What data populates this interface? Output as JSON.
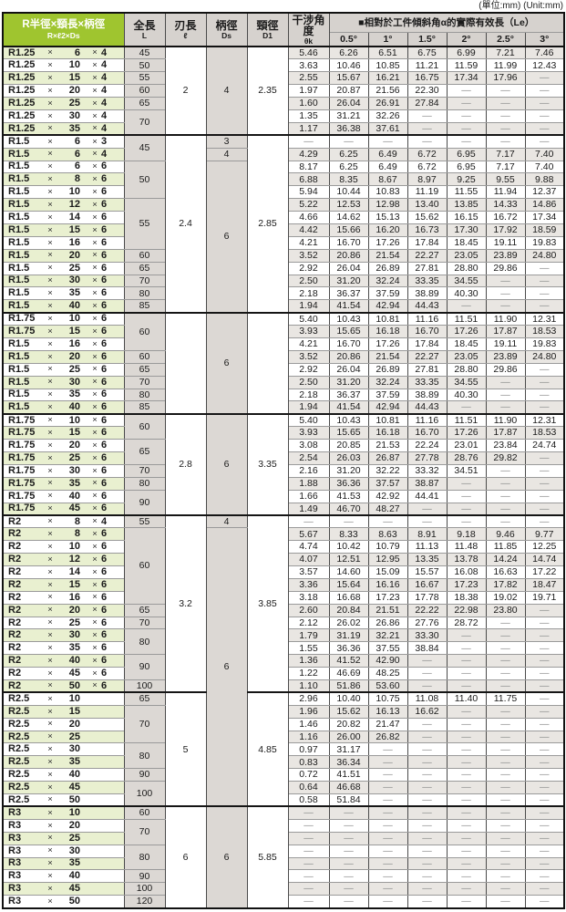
{
  "unit_note": "(單位:mm) (Unit:mm)",
  "colors": {
    "header_accent_green": "#9fc52f",
    "header_gray": "#d6d2ce",
    "row_tint_green": "#e9f0d0",
    "row_tint_gray": "#e9e6e2",
    "fixed_col_gray": "#dcd8d4"
  },
  "header": {
    "col_label_line1": "R半徑×頸長×柄徑",
    "col_label_line2": "R×ℓ2×Ds",
    "col_length_line1": "全長",
    "col_length_line2": "L",
    "col_flute_line1": "刃長",
    "col_flute_line2": "ℓ",
    "col_shank_line1": "柄徑",
    "col_shank_line2": "Ds",
    "col_neck_line1": "頸徑",
    "col_neck_line2": "D1",
    "col_angle_line1": "干涉角度",
    "col_angle_line2": "θk",
    "le_header": "■相對於工件傾斜角α的實際有效長（Le）",
    "angles": [
      "0.5°",
      "1°",
      "1.5°",
      "2°",
      "2.5°",
      "3°"
    ]
  },
  "rows": [
    {
      "r": "R1.25",
      "n": "6",
      "d": "4",
      "L": "45",
      "Ls": 1,
      "fl": "2",
      "fls": 7,
      "ds": "4",
      "dss": 7,
      "d1": "2.35",
      "d1s": 7,
      "tk": "5.46",
      "v": [
        "6.26",
        "6.51",
        "6.75",
        "6.99",
        "7.21",
        "7.46"
      ]
    },
    {
      "r": "R1.25",
      "n": "10",
      "d": "4",
      "L": "50",
      "tk": "3.63",
      "v": [
        "10.46",
        "10.85",
        "11.21",
        "11.59",
        "11.99",
        "12.43"
      ]
    },
    {
      "r": "R1.25",
      "n": "15",
      "d": "4",
      "L": "55",
      "tk": "2.55",
      "v": [
        "15.67",
        "16.21",
        "16.75",
        "17.34",
        "17.96",
        "—"
      ]
    },
    {
      "r": "R1.25",
      "n": "20",
      "d": "4",
      "L": "60",
      "tk": "1.97",
      "v": [
        "20.87",
        "21.56",
        "22.30",
        "—",
        "—",
        "—"
      ]
    },
    {
      "r": "R1.25",
      "n": "25",
      "d": "4",
      "L": "65",
      "tk": "1.60",
      "v": [
        "26.04",
        "26.91",
        "27.84",
        "—",
        "—",
        "—"
      ]
    },
    {
      "r": "R1.25",
      "n": "30",
      "d": "4",
      "L": "70",
      "Ls": 2,
      "tk": "1.35",
      "v": [
        "31.21",
        "32.26",
        "—",
        "—",
        "—",
        "—"
      ]
    },
    {
      "r": "R1.25",
      "n": "35",
      "d": "4",
      "tk": "1.17",
      "v": [
        "36.38",
        "37.61",
        "—",
        "—",
        "—",
        "—"
      ]
    },
    {
      "r": "R1.5",
      "n": "6",
      "d": "3",
      "sec": 1,
      "L": "45",
      "Ls": 2,
      "fl": "2.4",
      "fls": 14,
      "ds": "3",
      "dss": 1,
      "d1": "2.85",
      "d1s": 14,
      "tk": "—",
      "v": [
        "—",
        "—",
        "—",
        "—",
        "—",
        "—"
      ]
    },
    {
      "r": "R1.5",
      "n": "6",
      "d": "4",
      "ds": "4",
      "dss": 1,
      "tk": "4.29",
      "v": [
        "6.25",
        "6.49",
        "6.72",
        "6.95",
        "7.17",
        "7.40"
      ]
    },
    {
      "r": "R1.5",
      "n": "6",
      "d": "6",
      "L": "50",
      "Ls": 3,
      "ds": "6",
      "dss": 12,
      "tk": "8.17",
      "v": [
        "6.25",
        "6.49",
        "6.72",
        "6.95",
        "7.17",
        "7.40"
      ]
    },
    {
      "r": "R1.5",
      "n": "8",
      "d": "6",
      "tk": "6.88",
      "v": [
        "8.35",
        "8.67",
        "8.97",
        "9.25",
        "9.55",
        "9.88"
      ]
    },
    {
      "r": "R1.5",
      "n": "10",
      "d": "6",
      "tk": "5.94",
      "v": [
        "10.44",
        "10.83",
        "11.19",
        "11.55",
        "11.94",
        "12.37"
      ]
    },
    {
      "r": "R1.5",
      "n": "12",
      "d": "6",
      "L": "55",
      "Ls": 4,
      "tk": "5.22",
      "v": [
        "12.53",
        "12.98",
        "13.40",
        "13.85",
        "14.33",
        "14.86"
      ]
    },
    {
      "r": "R1.5",
      "n": "14",
      "d": "6",
      "tk": "4.66",
      "v": [
        "14.62",
        "15.13",
        "15.62",
        "16.15",
        "16.72",
        "17.34"
      ]
    },
    {
      "r": "R1.5",
      "n": "15",
      "d": "6",
      "tk": "4.42",
      "v": [
        "15.66",
        "16.20",
        "16.73",
        "17.30",
        "17.92",
        "18.59"
      ]
    },
    {
      "r": "R1.5",
      "n": "16",
      "d": "6",
      "tk": "4.21",
      "v": [
        "16.70",
        "17.26",
        "17.84",
        "18.45",
        "19.11",
        "19.83"
      ]
    },
    {
      "r": "R1.5",
      "n": "20",
      "d": "6",
      "L": "60",
      "tk": "3.52",
      "v": [
        "20.86",
        "21.54",
        "22.27",
        "23.05",
        "23.89",
        "24.80"
      ]
    },
    {
      "r": "R1.5",
      "n": "25",
      "d": "6",
      "L": "65",
      "tk": "2.92",
      "v": [
        "26.04",
        "26.89",
        "27.81",
        "28.80",
        "29.86",
        "—"
      ]
    },
    {
      "r": "R1.5",
      "n": "30",
      "d": "6",
      "L": "70",
      "tk": "2.50",
      "v": [
        "31.20",
        "32.24",
        "33.35",
        "34.55",
        "—",
        "—"
      ]
    },
    {
      "r": "R1.5",
      "n": "35",
      "d": "6",
      "L": "80",
      "tk": "2.18",
      "v": [
        "36.37",
        "37.59",
        "38.89",
        "40.30",
        "—",
        "—"
      ]
    },
    {
      "r": "R1.5",
      "n": "40",
      "d": "6",
      "L": "85",
      "tk": "1.94",
      "v": [
        "41.54",
        "42.94",
        "44.43",
        "—",
        "—",
        "—"
      ]
    },
    {
      "r": "R1.75",
      "n": "10",
      "d": "6",
      "sec": 1,
      "L": "60",
      "Ls": 3,
      "fl": "",
      "fls": 8,
      "ds": "6",
      "dss": 8,
      "d1": "",
      "d1s": 8,
      "tk": "5.40",
      "v": [
        "10.43",
        "10.81",
        "11.16",
        "11.51",
        "11.90",
        "12.31"
      ]
    },
    {
      "r": "R1.75",
      "n": "15",
      "d": "6",
      "tk": "3.93",
      "v": [
        "15.65",
        "16.18",
        "16.70",
        "17.26",
        "17.87",
        "18.53"
      ]
    },
    {
      "r": "R1.5",
      "n": "16",
      "d": "6",
      "tk": "4.21",
      "v": [
        "16.70",
        "17.26",
        "17.84",
        "18.45",
        "19.11",
        "19.83"
      ]
    },
    {
      "r": "R1.5",
      "n": "20",
      "d": "6",
      "L": "60",
      "tk": "3.52",
      "v": [
        "20.86",
        "21.54",
        "22.27",
        "23.05",
        "23.89",
        "24.80"
      ]
    },
    {
      "r": "R1.5",
      "n": "25",
      "d": "6",
      "L": "65",
      "tk": "2.92",
      "v": [
        "26.04",
        "26.89",
        "27.81",
        "28.80",
        "29.86",
        "—"
      ]
    },
    {
      "r": "R1.5",
      "n": "30",
      "d": "6",
      "L": "70",
      "tk": "2.50",
      "v": [
        "31.20",
        "32.24",
        "33.35",
        "34.55",
        "—",
        "—"
      ]
    },
    {
      "r": "R1.5",
      "n": "35",
      "d": "6",
      "L": "80",
      "tk": "2.18",
      "v": [
        "36.37",
        "37.59",
        "38.89",
        "40.30",
        "—",
        "—"
      ]
    },
    {
      "r": "R1.5",
      "n": "40",
      "d": "6",
      "L": "85",
      "tk": "1.94",
      "v": [
        "41.54",
        "42.94",
        "44.43",
        "—",
        "—",
        "—"
      ]
    },
    {
      "r": "R1.75",
      "n": "10",
      "d": "6",
      "sec": 1,
      "L": "60",
      "Ls": 2,
      "fl": "2.8",
      "fls": 8,
      "ds": "6",
      "dss": 8,
      "d1": "3.35",
      "d1s": 8,
      "tk": "5.40",
      "v": [
        "10.43",
        "10.81",
        "11.16",
        "11.51",
        "11.90",
        "12.31"
      ]
    },
    {
      "r": "R1.75",
      "n": "15",
      "d": "6",
      "tk": "3.93",
      "v": [
        "15.65",
        "16.18",
        "16.70",
        "17.26",
        "17.87",
        "18.53"
      ]
    },
    {
      "r": "R1.75",
      "n": "20",
      "d": "6",
      "L": "65",
      "Ls": 2,
      "tk": "3.08",
      "v": [
        "20.85",
        "21.53",
        "22.24",
        "23.01",
        "23.84",
        "24.74"
      ]
    },
    {
      "r": "R1.75",
      "n": "25",
      "d": "6",
      "tk": "2.54",
      "v": [
        "26.03",
        "26.87",
        "27.78",
        "28.76",
        "29.82",
        "—"
      ]
    },
    {
      "r": "R1.75",
      "n": "30",
      "d": "6",
      "L": "70",
      "tk": "2.16",
      "v": [
        "31.20",
        "32.22",
        "33.32",
        "34.51",
        "—",
        "—"
      ]
    },
    {
      "r": "R1.75",
      "n": "35",
      "d": "6",
      "L": "80",
      "tk": "1.88",
      "v": [
        "36.36",
        "37.57",
        "38.87",
        "—",
        "—",
        "—"
      ]
    },
    {
      "r": "R1.75",
      "n": "40",
      "d": "6",
      "L": "90",
      "Ls": 2,
      "tk": "1.66",
      "v": [
        "41.53",
        "42.92",
        "44.41",
        "—",
        "—",
        "—"
      ]
    },
    {
      "r": "R1.75",
      "n": "45",
      "d": "6",
      "tk": "1.49",
      "v": [
        "46.70",
        "48.27",
        "—",
        "—",
        "—",
        "—"
      ]
    },
    {
      "r": "R2",
      "n": "8",
      "d": "4",
      "sec": 1,
      "L": "55",
      "fl": "3.2",
      "fls": 14,
      "ds": "4",
      "dss": 1,
      "d1": "3.85",
      "d1s": 14,
      "tk": "—",
      "v": [
        "—",
        "—",
        "—",
        "—",
        "—",
        "—"
      ]
    },
    {
      "r": "R2",
      "n": "8",
      "d": "6",
      "L": "60",
      "Ls": 6,
      "ds": "6",
      "dss": 22,
      "tk": "5.67",
      "v": [
        "8.33",
        "8.63",
        "8.91",
        "9.18",
        "9.46",
        "9.77"
      ]
    },
    {
      "r": "R2",
      "n": "10",
      "d": "6",
      "tk": "4.74",
      "v": [
        "10.42",
        "10.79",
        "11.13",
        "11.48",
        "11.85",
        "12.25"
      ]
    },
    {
      "r": "R2",
      "n": "12",
      "d": "6",
      "tk": "4.07",
      "v": [
        "12.51",
        "12.95",
        "13.35",
        "13.78",
        "14.24",
        "14.74"
      ]
    },
    {
      "r": "R2",
      "n": "14",
      "d": "6",
      "tk": "3.57",
      "v": [
        "14.60",
        "15.09",
        "15.57",
        "16.08",
        "16.63",
        "17.22"
      ]
    },
    {
      "r": "R2",
      "n": "15",
      "d": "6",
      "tk": "3.36",
      "v": [
        "15.64",
        "16.16",
        "16.67",
        "17.23",
        "17.82",
        "18.47"
      ]
    },
    {
      "r": "R2",
      "n": "16",
      "d": "6",
      "tk": "3.18",
      "v": [
        "16.68",
        "17.23",
        "17.78",
        "18.38",
        "19.02",
        "19.71"
      ]
    },
    {
      "r": "R2",
      "n": "20",
      "d": "6",
      "L": "65",
      "tk": "2.60",
      "v": [
        "20.84",
        "21.51",
        "22.22",
        "22.98",
        "23.80",
        "—"
      ]
    },
    {
      "r": "R2",
      "n": "25",
      "d": "6",
      "L": "70",
      "tk": "2.12",
      "v": [
        "26.02",
        "26.86",
        "27.76",
        "28.72",
        "—",
        "—"
      ]
    },
    {
      "r": "R2",
      "n": "30",
      "d": "6",
      "L": "80",
      "Ls": 2,
      "tk": "1.79",
      "v": [
        "31.19",
        "32.21",
        "33.30",
        "—",
        "—",
        "—"
      ]
    },
    {
      "r": "R2",
      "n": "35",
      "d": "6",
      "tk": "1.55",
      "v": [
        "36.36",
        "37.55",
        "38.84",
        "—",
        "—",
        "—"
      ]
    },
    {
      "r": "R2",
      "n": "40",
      "d": "6",
      "L": "90",
      "Ls": 2,
      "tk": "1.36",
      "v": [
        "41.52",
        "42.90",
        "—",
        "—",
        "—",
        "—"
      ]
    },
    {
      "r": "R2",
      "n": "45",
      "d": "6",
      "tk": "1.22",
      "v": [
        "46.69",
        "48.25",
        "—",
        "—",
        "—",
        "—"
      ]
    },
    {
      "r": "R2",
      "n": "50",
      "d": "6",
      "L": "100",
      "tk": "1.10",
      "v": [
        "51.86",
        "53.60",
        "—",
        "—",
        "—",
        "—"
      ]
    },
    {
      "r": "R2.5",
      "n": "10",
      "sec": 1,
      "L": "65",
      "fl": "5",
      "fls": 9,
      "d1": "4.85",
      "d1s": 9,
      "tk": "2.96",
      "v": [
        "10.40",
        "10.75",
        "11.08",
        "11.40",
        "11.75",
        "—"
      ]
    },
    {
      "r": "R2.5",
      "n": "15",
      "L": "70",
      "Ls": 3,
      "tk": "1.96",
      "v": [
        "15.62",
        "16.13",
        "16.62",
        "—",
        "—",
        "—"
      ]
    },
    {
      "r": "R2.5",
      "n": "20",
      "tk": "1.46",
      "v": [
        "20.82",
        "21.47",
        "—",
        "—",
        "—",
        "—"
      ]
    },
    {
      "r": "R2.5",
      "n": "25",
      "tk": "1.16",
      "v": [
        "26.00",
        "26.82",
        "—",
        "—",
        "—",
        "—"
      ]
    },
    {
      "r": "R2.5",
      "n": "30",
      "L": "80",
      "Ls": 2,
      "tk": "0.97",
      "v": [
        "31.17",
        "—",
        "—",
        "—",
        "—",
        "—"
      ]
    },
    {
      "r": "R2.5",
      "n": "35",
      "tk": "0.83",
      "v": [
        "36.34",
        "—",
        "—",
        "—",
        "—",
        "—"
      ]
    },
    {
      "r": "R2.5",
      "n": "40",
      "L": "90",
      "tk": "0.72",
      "v": [
        "41.51",
        "—",
        "—",
        "—",
        "—",
        "—"
      ]
    },
    {
      "r": "R2.5",
      "n": "45",
      "L": "100",
      "Ls": 2,
      "tk": "0.64",
      "v": [
        "46.68",
        "—",
        "—",
        "—",
        "—",
        "—"
      ]
    },
    {
      "r": "R2.5",
      "n": "50",
      "tk": "0.58",
      "v": [
        "51.84",
        "—",
        "—",
        "—",
        "—",
        "—"
      ]
    },
    {
      "r": "R3",
      "n": "10",
      "sec": 1,
      "L": "60",
      "fl": "6",
      "fls": 8,
      "ds": "6",
      "dss": 8,
      "d1": "5.85",
      "d1s": 8,
      "tk": "—",
      "v": [
        "—",
        "—",
        "—",
        "—",
        "—",
        "—"
      ]
    },
    {
      "r": "R3",
      "n": "20",
      "L": "70",
      "Ls": 2,
      "tk": "—",
      "v": [
        "—",
        "—",
        "—",
        "—",
        "—",
        "—"
      ]
    },
    {
      "r": "R3",
      "n": "25",
      "tk": "—",
      "v": [
        "—",
        "—",
        "—",
        "—",
        "—",
        "—"
      ]
    },
    {
      "r": "R3",
      "n": "30",
      "L": "80",
      "Ls": 2,
      "tk": "—",
      "v": [
        "—",
        "—",
        "—",
        "—",
        "—",
        "—"
      ]
    },
    {
      "r": "R3",
      "n": "35",
      "tk": "—",
      "v": [
        "—",
        "—",
        "—",
        "—",
        "—",
        "—"
      ]
    },
    {
      "r": "R3",
      "n": "40",
      "L": "90",
      "tk": "—",
      "v": [
        "—",
        "—",
        "—",
        "—",
        "—",
        "—"
      ]
    },
    {
      "r": "R3",
      "n": "45",
      "L": "100",
      "tk": "—",
      "v": [
        "—",
        "—",
        "—",
        "—",
        "—",
        "—"
      ]
    },
    {
      "r": "R3",
      "n": "50",
      "L": "120",
      "tk": "—",
      "v": [
        "—",
        "—",
        "—",
        "—",
        "—",
        "—"
      ]
    }
  ]
}
